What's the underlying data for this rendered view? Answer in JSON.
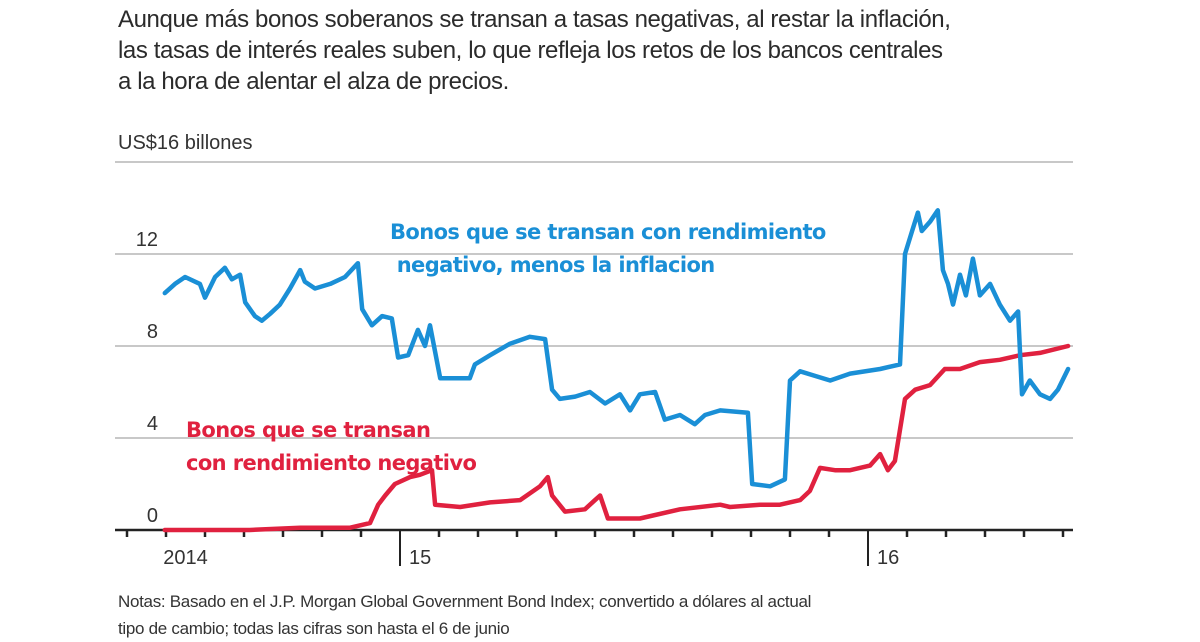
{
  "subtitle_lines": [
    "Aunque más bonos soberanos se transan a tasas negativas, al restar la inflación,",
    "las tasas de interés reales suben, lo que refleja los retos de los bancos centrales",
    "a la hora de alentar el alza de precios."
  ],
  "notes_lines": [
    "Notas: Basado en el J.P. Morgan Global Government Bond Index; convertido a dólares al actual",
    "tipo de cambio; todas las cifras son hasta el 6 de junio"
  ],
  "chart_data": {
    "type": "line",
    "title": "",
    "unit_label": "US$16 billones",
    "xlabel": "",
    "ylabel": "",
    "x_units": "months since January 2015",
    "xlim": [
      -7.3,
      17.2
    ],
    "ylim": [
      0,
      16
    ],
    "yticks": [
      0,
      4,
      8,
      12,
      16
    ],
    "ytick_labels": [
      "0",
      "4",
      "8",
      "12",
      "US$16 billones"
    ],
    "xtick_labels": [
      {
        "label": "2014",
        "at": -5.5
      },
      {
        "label": "15",
        "at": 0
      },
      {
        "label": "16",
        "at": 12
      }
    ],
    "year_dividers": [
      0,
      12
    ],
    "grid": true,
    "colors": {
      "blue": "#1a8fd6",
      "red": "#e0213f",
      "grid": "#c8c8c8",
      "axis": "#222222"
    },
    "series": [
      {
        "name": "Bonos que se transan con rendimiento negativo, menos la inflacion",
        "label_lines": [
          "Bonos que se transan con rendimiento",
          " negativo, menos la inflacion"
        ],
        "color": "#1a8fd6",
        "x": [
          -6.03,
          -5.77,
          -5.51,
          -5.13,
          -5.0,
          -4.74,
          -4.49,
          -4.31,
          -4.1,
          -3.97,
          -3.72,
          -3.54,
          -3.33,
          -3.08,
          -2.82,
          -2.56,
          -2.44,
          -2.18,
          -1.79,
          -1.41,
          -1.08,
          -0.97,
          -0.72,
          -0.46,
          -0.21,
          -0.05,
          0.21,
          0.46,
          0.64,
          0.77,
          1.03,
          1.79,
          1.92,
          2.31,
          2.82,
          3.33,
          3.72,
          3.9,
          4.1,
          4.49,
          4.87,
          5.26,
          5.64,
          5.9,
          6.15,
          6.54,
          6.79,
          7.18,
          7.56,
          7.82,
          8.21,
          8.92,
          9.03,
          9.49,
          9.87,
          10.0,
          10.26,
          10.64,
          11.03,
          11.54,
          12.31,
          12.82,
          12.95,
          13.13,
          13.28,
          13.38,
          13.59,
          13.79,
          13.92,
          14.05,
          14.18,
          14.36,
          14.51,
          14.69,
          14.87,
          15.13,
          15.38,
          15.64,
          15.85,
          15.95,
          16.15,
          16.41,
          16.67,
          16.87,
          17.13
        ],
        "y": [
          10.3,
          10.7,
          11.0,
          10.7,
          10.1,
          11.0,
          11.4,
          10.9,
          11.1,
          9.9,
          9.3,
          9.1,
          9.4,
          9.8,
          10.5,
          11.3,
          10.8,
          10.5,
          10.7,
          11.0,
          11.6,
          9.6,
          8.9,
          9.3,
          9.2,
          7.5,
          7.6,
          8.7,
          8.0,
          8.9,
          6.6,
          6.6,
          7.2,
          7.6,
          8.1,
          8.4,
          8.3,
          6.1,
          5.7,
          5.8,
          6.0,
          5.5,
          5.9,
          5.2,
          5.9,
          6.0,
          4.8,
          5.0,
          4.6,
          5.0,
          5.2,
          5.1,
          2.0,
          1.9,
          2.2,
          6.5,
          6.9,
          6.7,
          6.5,
          6.8,
          7.0,
          7.2,
          12.0,
          13.0,
          13.8,
          13.0,
          13.4,
          13.9,
          11.3,
          10.7,
          9.8,
          11.1,
          10.2,
          11.8,
          10.2,
          10.7,
          9.8,
          9.1,
          9.5,
          5.9,
          6.5,
          5.9,
          5.7,
          6.1,
          7.0
        ]
      },
      {
        "name": "Bonos que se transan con rendimiento negativo",
        "label_lines": [
          "Bonos que se transan",
          "con rendimiento negativo"
        ],
        "color": "#e0213f",
        "x": [
          -6.03,
          -3.85,
          -2.56,
          -1.28,
          -0.77,
          -0.56,
          -0.38,
          -0.13,
          0.26,
          0.51,
          0.82,
          0.9,
          1.54,
          2.31,
          3.08,
          3.59,
          3.79,
          3.9,
          4.23,
          4.74,
          5.0,
          5.13,
          5.33,
          6.15,
          7.18,
          8.21,
          8.46,
          9.23,
          9.74,
          10.26,
          10.51,
          10.77,
          11.15,
          11.54,
          12.05,
          12.31,
          12.51,
          12.69,
          12.95,
          13.21,
          13.59,
          13.97,
          14.36,
          14.87,
          15.38,
          15.9,
          16.41,
          17.13
        ],
        "y": [
          0.0,
          0.0,
          0.1,
          0.1,
          0.3,
          1.1,
          1.5,
          2.0,
          2.3,
          2.4,
          2.6,
          1.1,
          1.0,
          1.2,
          1.3,
          1.9,
          2.3,
          1.5,
          0.8,
          0.9,
          1.3,
          1.5,
          0.5,
          0.5,
          0.9,
          1.1,
          1.0,
          1.1,
          1.1,
          1.3,
          1.7,
          2.7,
          2.6,
          2.6,
          2.8,
          3.3,
          2.6,
          3.0,
          5.7,
          6.1,
          6.3,
          7.0,
          7.0,
          7.3,
          7.4,
          7.6,
          7.7,
          8.0
        ]
      }
    ]
  }
}
